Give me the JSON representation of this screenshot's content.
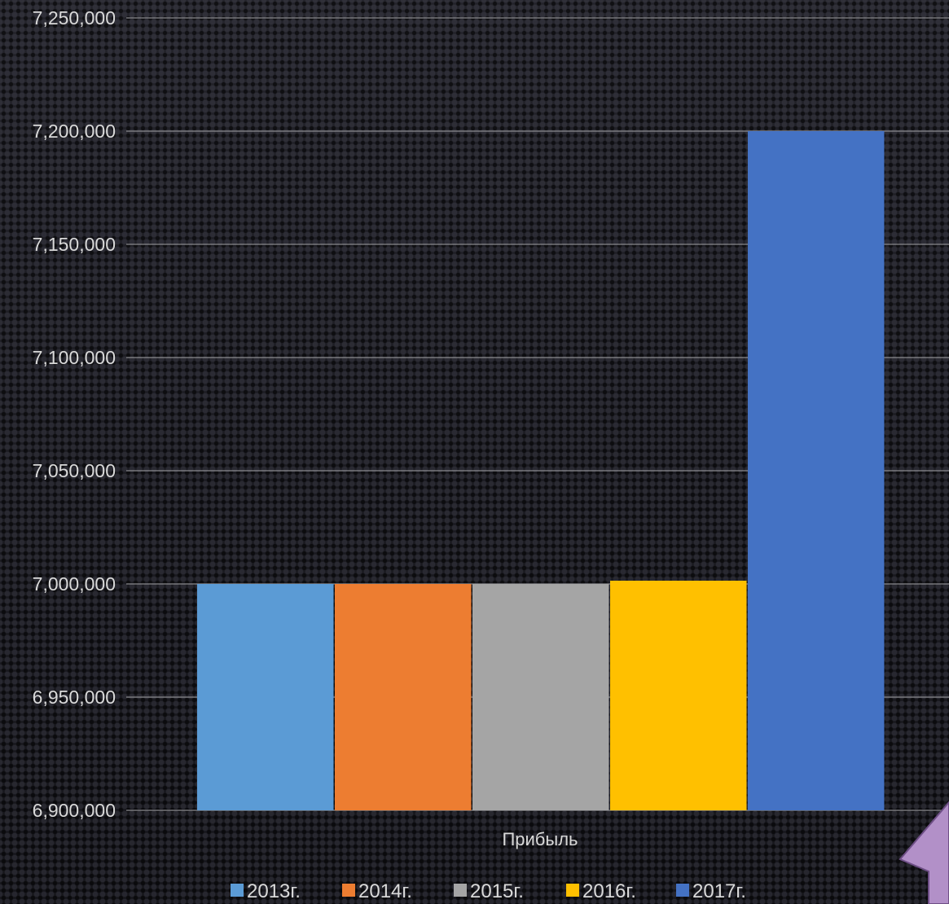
{
  "chart_data": {
    "type": "bar",
    "title": "",
    "xlabel": "",
    "ylabel": "",
    "categories": [
      "Прибыль"
    ],
    "category_label": "Прибыль",
    "series": [
      {
        "name": "2013г.",
        "values": [
          7000000
        ],
        "color": "#5b9bd5"
      },
      {
        "name": "2014г.",
        "values": [
          7000000
        ],
        "color": "#ed7d31"
      },
      {
        "name": "2015г.",
        "values": [
          7000000
        ],
        "color": "#a5a5a5"
      },
      {
        "name": "2016г.",
        "values": [
          7001500
        ],
        "color": "#ffc000"
      },
      {
        "name": "2017г.",
        "values": [
          7200000
        ],
        "color": "#4472c4"
      }
    ],
    "ylim": [
      6900000,
      7250000
    ],
    "y_ticks": [
      6900000,
      6950000,
      7000000,
      7050000,
      7100000,
      7150000,
      7200000,
      7250000
    ],
    "y_tick_labels": [
      "6,900,000",
      "6,950,000",
      "7,000,000",
      "7,050,000",
      "7,100,000",
      "7,150,000",
      "7,200,000",
      "7,250,000"
    ],
    "grid": true,
    "legend_position": "bottom"
  },
  "decoration": {
    "arrow_color": "#b290c8",
    "arrow_icon": "up-arrow-icon"
  }
}
